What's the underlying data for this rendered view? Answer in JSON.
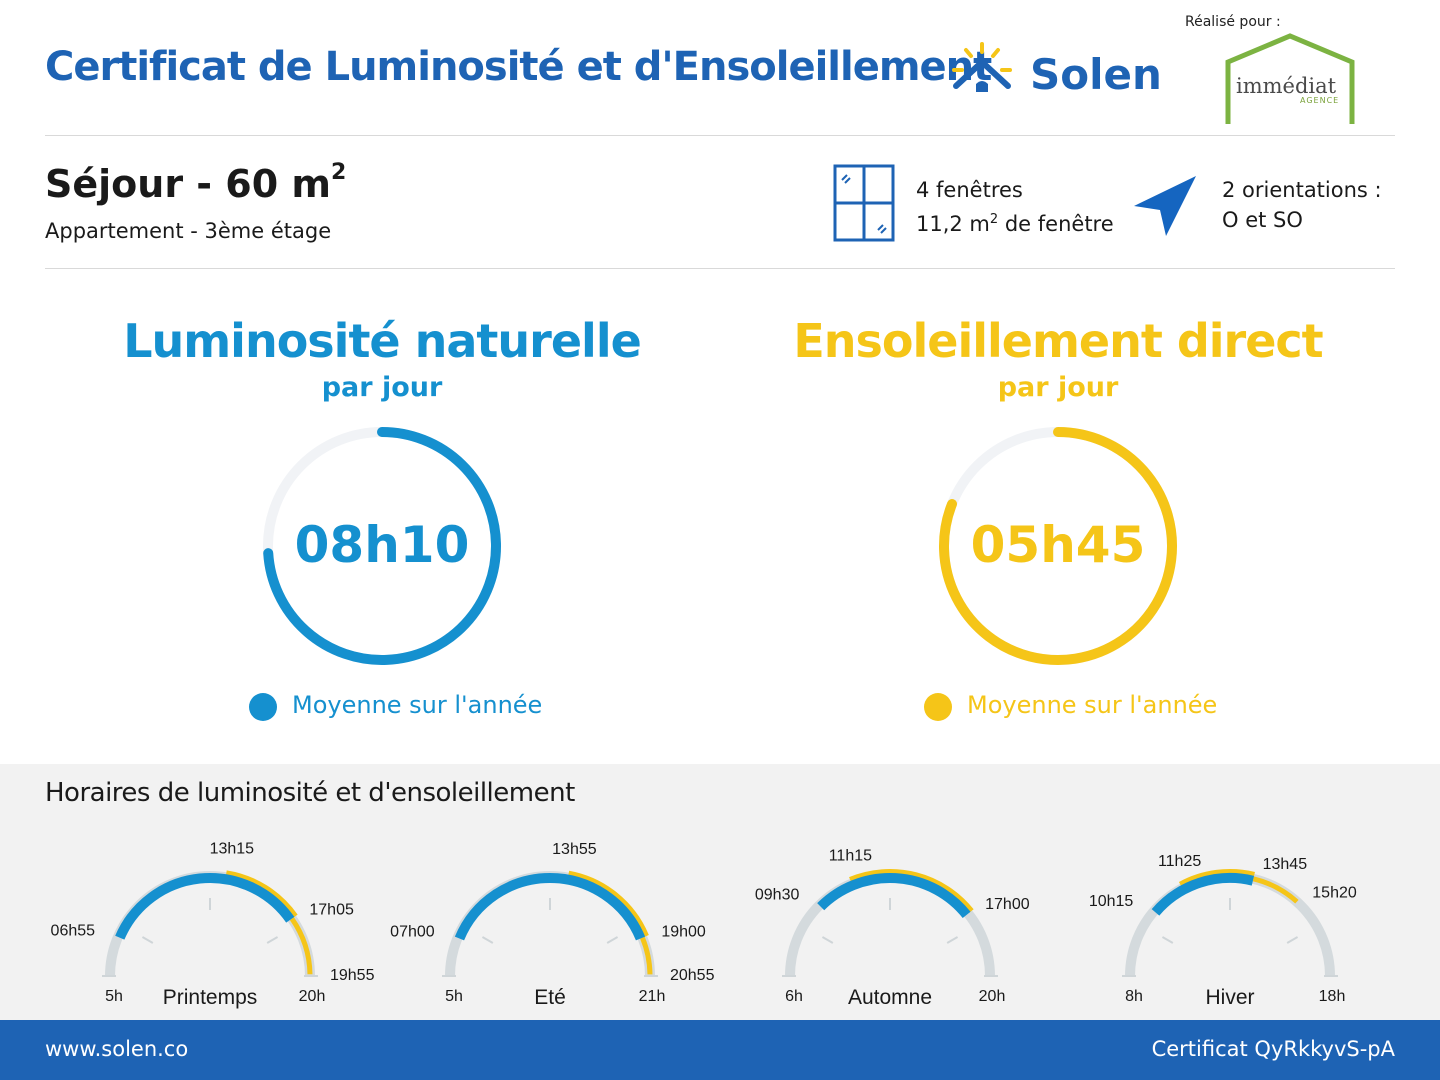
{
  "header": {
    "title": "Certificat de Luminosité et d'Ensoleillement",
    "brand": "Solen",
    "realise_label": "Réalisé pour :",
    "agency_name": "immédiat",
    "agency_sub": "AGENCE"
  },
  "room": {
    "name": "Séjour - 60 m",
    "area_exp": "2",
    "type": "Appartement - 3ème étage"
  },
  "windows": {
    "count_label": "4 fenêtres",
    "area_value": "11,2 m",
    "area_exp": "2",
    "area_suffix": " de fenêtre"
  },
  "orientation": {
    "line1": "2 orientations :",
    "line2": "O et SO"
  },
  "luminosity": {
    "title": "Luminosité naturelle",
    "subtitle": "par jour",
    "value": "08h10",
    "legend": "Moyenne sur l'année",
    "fraction": 0.74
  },
  "sunshine": {
    "title": "Ensoleillement direct",
    "subtitle": "par jour",
    "value": "05h45",
    "legend": "Moyenne sur l'année",
    "fraction": 0.81
  },
  "schedule": {
    "title": "Horaires de luminosité et d'ensoleillement",
    "seasons": [
      {
        "name": "Printemps",
        "start": "5h",
        "end": "20h",
        "sunrise": "06h55",
        "sun_start": "13h15",
        "sun_end": "17h05",
        "sunset": "19h55"
      },
      {
        "name": "Eté",
        "start": "5h",
        "end": "21h",
        "sunrise": "07h00",
        "sun_start": "13h55",
        "sun_end": "19h00",
        "sunset": "20h55"
      },
      {
        "name": "Automne",
        "start": "6h",
        "end": "20h",
        "sunrise": "09h30",
        "sun_start": "11h15",
        "sun_end": "17h00",
        "sunset": ""
      },
      {
        "name": "Hiver",
        "start": "8h",
        "end": "18h",
        "sunrise": "10h15",
        "sun_start": "11h25",
        "sun_end": "13h45",
        "sunset": "15h20"
      }
    ]
  },
  "footer": {
    "url": "www.solen.co",
    "certificate": "Certificat QyRkkyvS-pA"
  },
  "colors": {
    "brand_blue": "#1e63b4",
    "light_blue": "#1590cf",
    "yellow": "#f5c518",
    "gray_track": "#d4dadd"
  }
}
